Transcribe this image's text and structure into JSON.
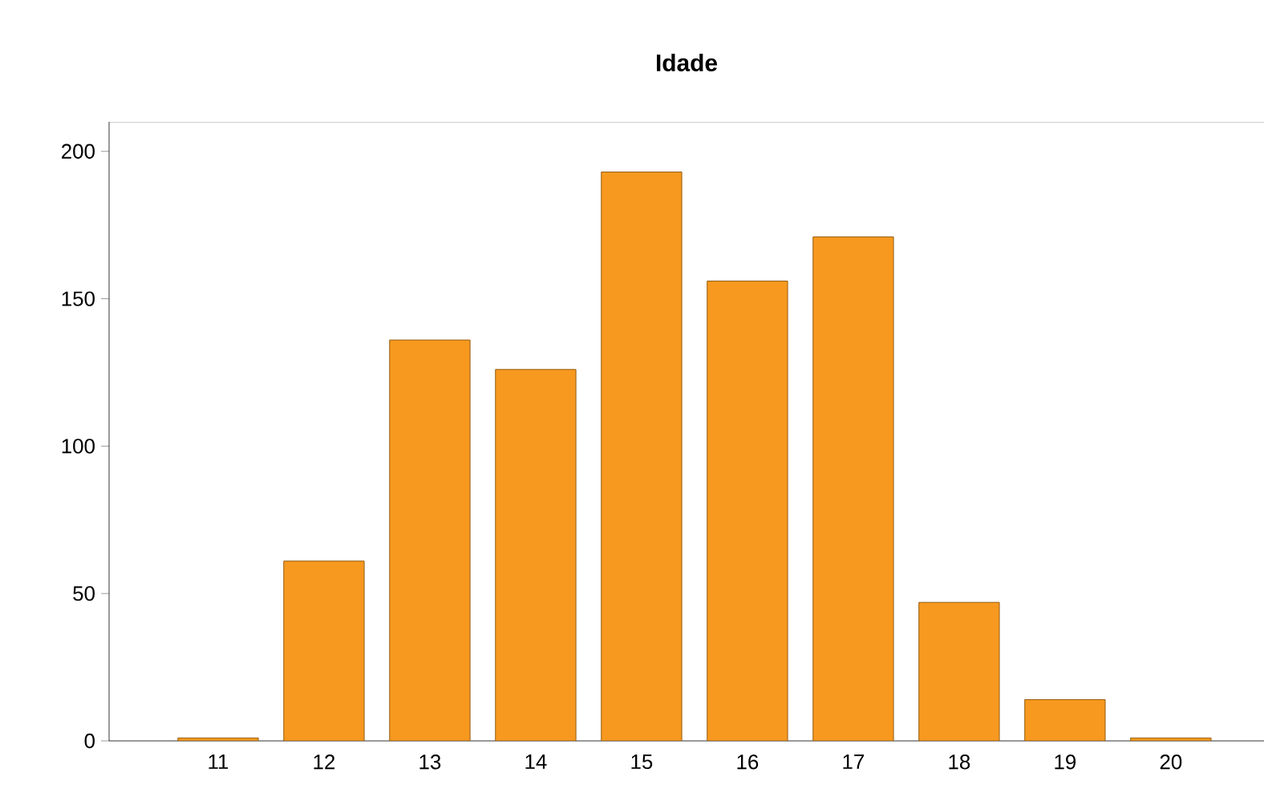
{
  "chart_data": {
    "type": "bar",
    "title": "Idade",
    "categories": [
      "11",
      "12",
      "13",
      "14",
      "15",
      "16",
      "17",
      "18",
      "19",
      "20"
    ],
    "values": [
      1,
      61,
      136,
      126,
      193,
      156,
      171,
      47,
      14,
      1
    ],
    "color": "#f7991f",
    "ylim": [
      0,
      210
    ],
    "yticks": [
      0,
      50,
      100,
      150,
      200
    ],
    "grid": false
  }
}
